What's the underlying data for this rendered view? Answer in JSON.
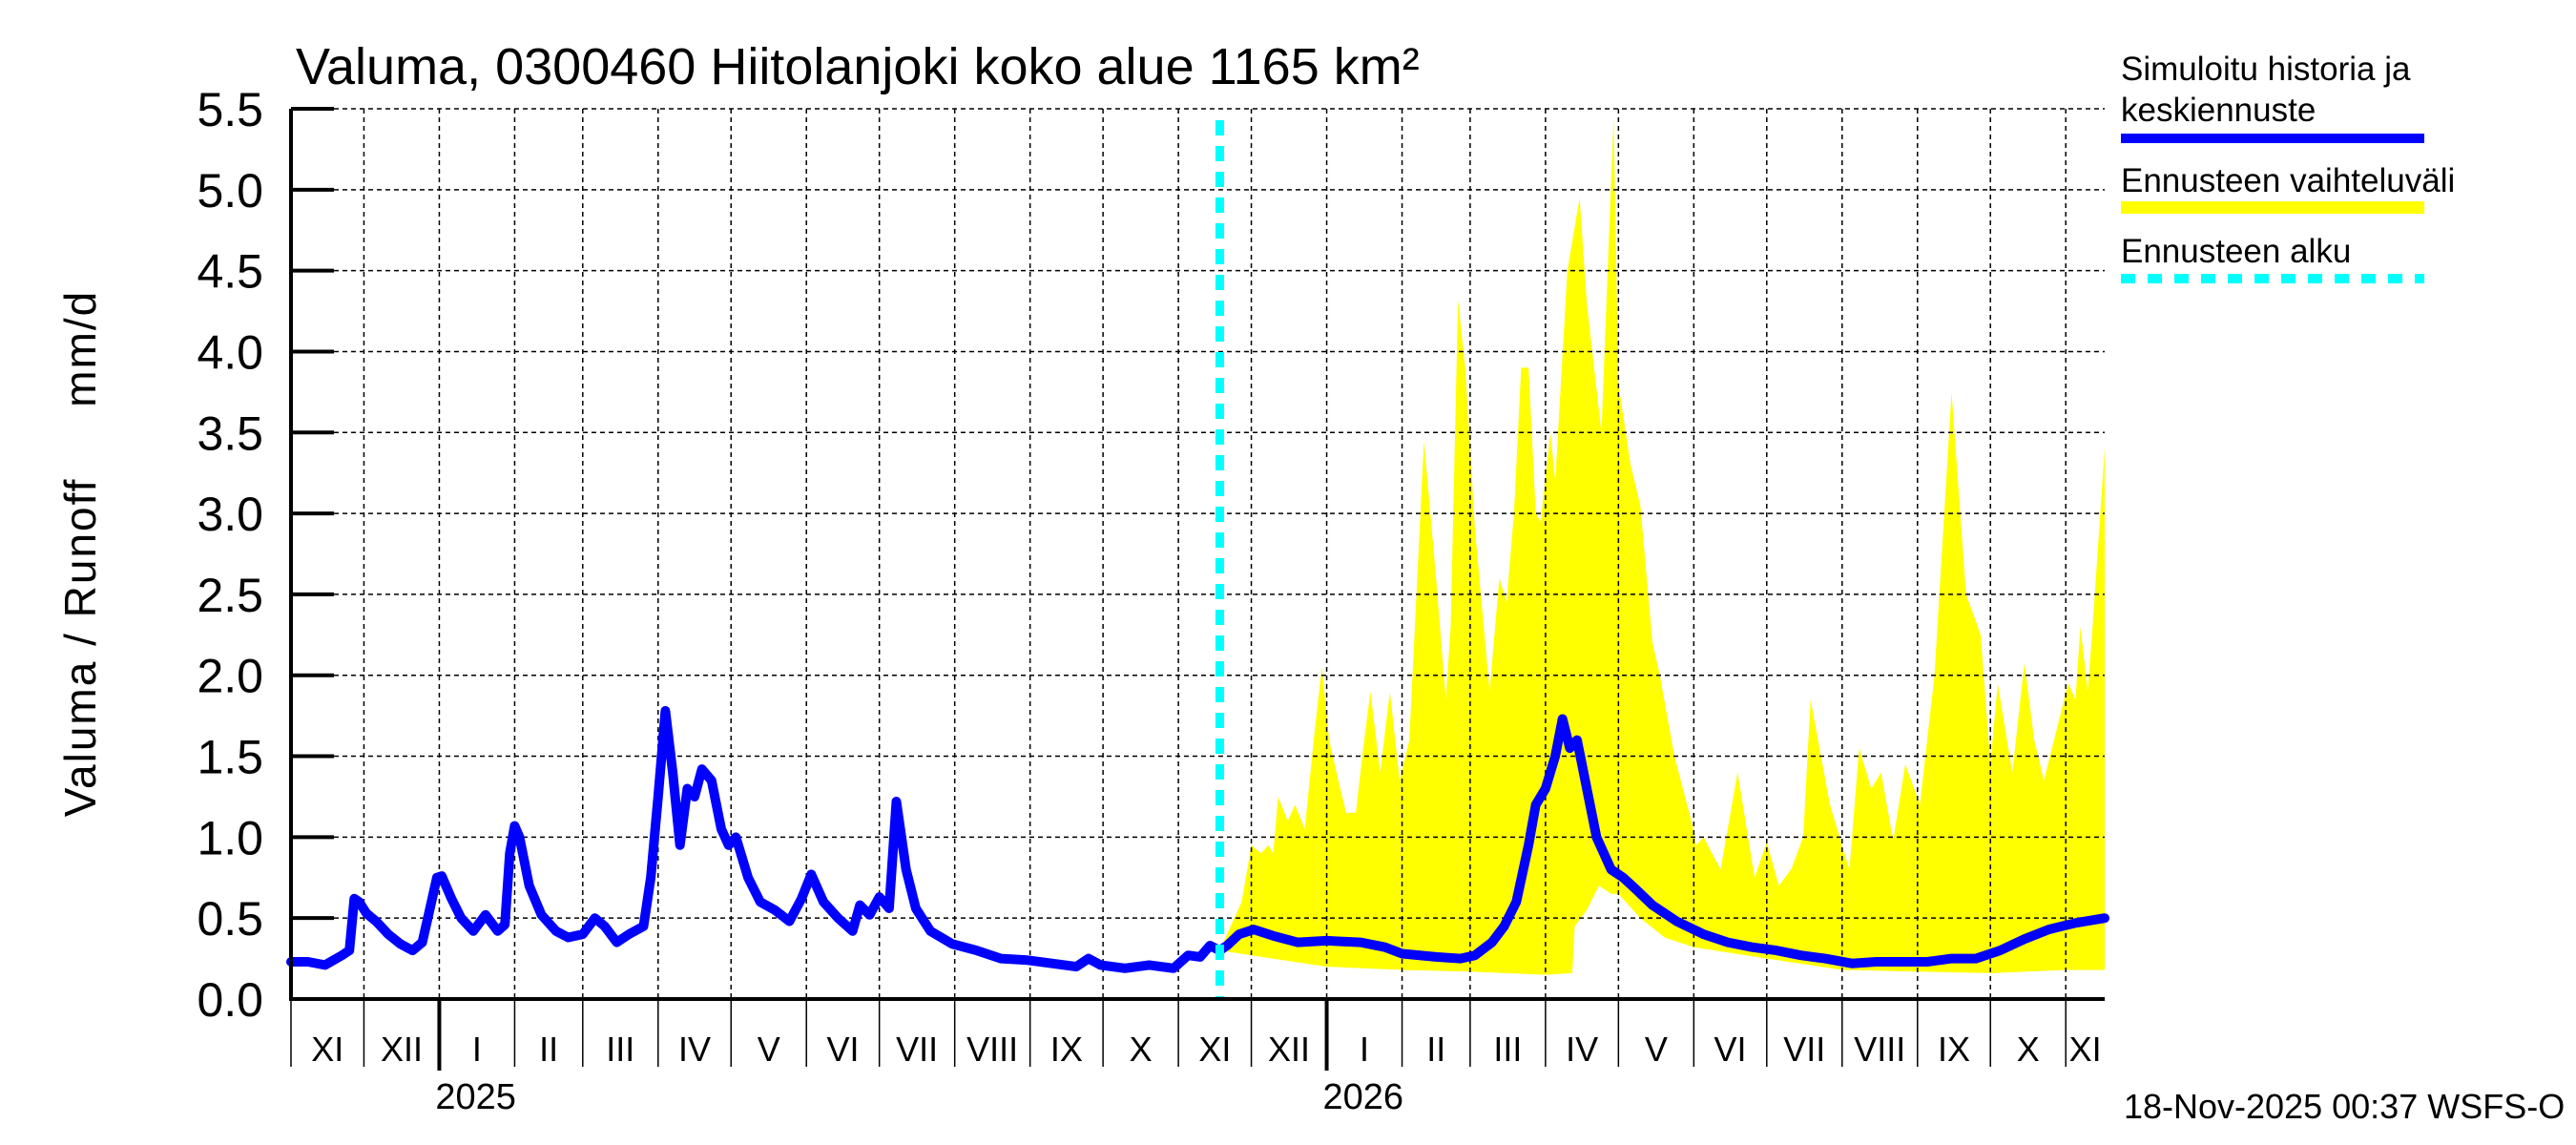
{
  "chart_data": {
    "type": "area",
    "title": "Valuma, 0300460 Hiitolanjoki koko alue 1165 km²",
    "ylabel": "Valuma / Runoff     mm/d",
    "ylim": [
      0,
      5.5
    ],
    "yticks": [
      "0.0",
      "0.5",
      "1.0",
      "1.5",
      "2.0",
      "2.5",
      "3.0",
      "3.5",
      "4.0",
      "4.5",
      "5.0",
      "5.5"
    ],
    "xlim": [
      "2024-11-01",
      "2026-11-17"
    ],
    "month_ticks": [
      {
        "date": "2024-11-01",
        "label": "XI"
      },
      {
        "date": "2024-12-01",
        "label": "XII"
      },
      {
        "date": "2025-01-01",
        "label": "I"
      },
      {
        "date": "2025-02-01",
        "label": "II"
      },
      {
        "date": "2025-03-01",
        "label": "III"
      },
      {
        "date": "2025-04-01",
        "label": "IV"
      },
      {
        "date": "2025-05-01",
        "label": "V"
      },
      {
        "date": "2025-06-01",
        "label": "VI"
      },
      {
        "date": "2025-07-01",
        "label": "VII"
      },
      {
        "date": "2025-08-01",
        "label": "VIII"
      },
      {
        "date": "2025-09-01",
        "label": "IX"
      },
      {
        "date": "2025-10-01",
        "label": "X"
      },
      {
        "date": "2025-11-01",
        "label": "XI"
      },
      {
        "date": "2025-12-01",
        "label": "XII"
      },
      {
        "date": "2026-01-01",
        "label": "I"
      },
      {
        "date": "2026-02-01",
        "label": "II"
      },
      {
        "date": "2026-03-01",
        "label": "III"
      },
      {
        "date": "2026-04-01",
        "label": "IV"
      },
      {
        "date": "2026-05-01",
        "label": "V"
      },
      {
        "date": "2026-06-01",
        "label": "VI"
      },
      {
        "date": "2026-07-01",
        "label": "VII"
      },
      {
        "date": "2026-08-01",
        "label": "VIII"
      },
      {
        "date": "2026-09-01",
        "label": "IX"
      },
      {
        "date": "2026-10-01",
        "label": "X"
      },
      {
        "date": "2026-11-01",
        "label": "XI"
      }
    ],
    "year_labels": [
      {
        "date": "2025-01-16",
        "label": "2025"
      },
      {
        "date": "2026-01-16",
        "label": "2026"
      }
    ],
    "grid": true,
    "legend_position": "right",
    "forecast_start": "2025-11-18",
    "series": [
      {
        "name": "Simuloitu historia ja keskiennuste",
        "color": "#0000ff",
        "points": [
          [
            "2024-11-01",
            0.23
          ],
          [
            "2024-11-08",
            0.23
          ],
          [
            "2024-11-15",
            0.21
          ],
          [
            "2024-11-22",
            0.27
          ],
          [
            "2024-11-25",
            0.3
          ],
          [
            "2024-11-27",
            0.62
          ],
          [
            "2024-11-29",
            0.6
          ],
          [
            "2024-12-02",
            0.53
          ],
          [
            "2024-12-06",
            0.48
          ],
          [
            "2024-12-11",
            0.4
          ],
          [
            "2024-12-16",
            0.34
          ],
          [
            "2024-12-21",
            0.3
          ],
          [
            "2024-12-25",
            0.35
          ],
          [
            "2024-12-28",
            0.55
          ],
          [
            "2024-12-31",
            0.75
          ],
          [
            "2025-01-02",
            0.76
          ],
          [
            "2025-01-06",
            0.62
          ],
          [
            "2025-01-10",
            0.5
          ],
          [
            "2025-01-15",
            0.42
          ],
          [
            "2025-01-20",
            0.52
          ],
          [
            "2025-01-25",
            0.42
          ],
          [
            "2025-01-28",
            0.46
          ],
          [
            "2025-01-30",
            0.9
          ],
          [
            "2025-02-01",
            1.07
          ],
          [
            "2025-02-03",
            1.0
          ],
          [
            "2025-02-07",
            0.7
          ],
          [
            "2025-02-12",
            0.52
          ],
          [
            "2025-02-18",
            0.42
          ],
          [
            "2025-02-23",
            0.38
          ],
          [
            "2025-03-01",
            0.4
          ],
          [
            "2025-03-06",
            0.5
          ],
          [
            "2025-03-10",
            0.45
          ],
          [
            "2025-03-15",
            0.35
          ],
          [
            "2025-03-20",
            0.4
          ],
          [
            "2025-03-26",
            0.45
          ],
          [
            "2025-03-29",
            0.75
          ],
          [
            "2025-04-01",
            1.25
          ],
          [
            "2025-04-04",
            1.78
          ],
          [
            "2025-04-07",
            1.4
          ],
          [
            "2025-04-10",
            0.95
          ],
          [
            "2025-04-13",
            1.3
          ],
          [
            "2025-04-16",
            1.25
          ],
          [
            "2025-04-19",
            1.42
          ],
          [
            "2025-04-23",
            1.35
          ],
          [
            "2025-04-27",
            1.05
          ],
          [
            "2025-04-30",
            0.95
          ],
          [
            "2025-05-03",
            1.0
          ],
          [
            "2025-05-08",
            0.75
          ],
          [
            "2025-05-13",
            0.6
          ],
          [
            "2025-05-19",
            0.55
          ],
          [
            "2025-05-25",
            0.48
          ],
          [
            "2025-05-30",
            0.62
          ],
          [
            "2025-06-03",
            0.77
          ],
          [
            "2025-06-08",
            0.6
          ],
          [
            "2025-06-14",
            0.5
          ],
          [
            "2025-06-20",
            0.42
          ],
          [
            "2025-06-23",
            0.58
          ],
          [
            "2025-06-27",
            0.52
          ],
          [
            "2025-07-01",
            0.63
          ],
          [
            "2025-07-05",
            0.56
          ],
          [
            "2025-07-08",
            1.22
          ],
          [
            "2025-07-12",
            0.8
          ],
          [
            "2025-07-16",
            0.56
          ],
          [
            "2025-07-22",
            0.42
          ],
          [
            "2025-07-31",
            0.34
          ],
          [
            "2025-08-10",
            0.3
          ],
          [
            "2025-08-20",
            0.25
          ],
          [
            "2025-08-31",
            0.24
          ],
          [
            "2025-09-10",
            0.22
          ],
          [
            "2025-09-20",
            0.2
          ],
          [
            "2025-09-25",
            0.25
          ],
          [
            "2025-09-30",
            0.21
          ],
          [
            "2025-10-10",
            0.19
          ],
          [
            "2025-10-20",
            0.21
          ],
          [
            "2025-10-30",
            0.19
          ],
          [
            "2025-11-05",
            0.27
          ],
          [
            "2025-11-10",
            0.26
          ],
          [
            "2025-11-14",
            0.33
          ],
          [
            "2025-11-18",
            0.3
          ],
          [
            "2025-11-21",
            0.33
          ],
          [
            "2025-11-26",
            0.4
          ],
          [
            "2025-12-02",
            0.43
          ],
          [
            "2025-12-10",
            0.39
          ],
          [
            "2025-12-20",
            0.35
          ],
          [
            "2026-01-01",
            0.36
          ],
          [
            "2026-01-15",
            0.35
          ],
          [
            "2026-01-25",
            0.32
          ],
          [
            "2026-02-01",
            0.28
          ],
          [
            "2026-02-15",
            0.26
          ],
          [
            "2026-02-25",
            0.25
          ],
          [
            "2026-03-03",
            0.27
          ],
          [
            "2026-03-10",
            0.35
          ],
          [
            "2026-03-15",
            0.45
          ],
          [
            "2026-03-20",
            0.6
          ],
          [
            "2026-03-25",
            0.95
          ],
          [
            "2026-03-28",
            1.2
          ],
          [
            "2026-04-01",
            1.3
          ],
          [
            "2026-04-05",
            1.5
          ],
          [
            "2026-04-08",
            1.73
          ],
          [
            "2026-04-11",
            1.55
          ],
          [
            "2026-04-14",
            1.6
          ],
          [
            "2026-04-18",
            1.3
          ],
          [
            "2026-04-22",
            1.0
          ],
          [
            "2026-04-28",
            0.8
          ],
          [
            "2026-05-03",
            0.75
          ],
          [
            "2026-05-08",
            0.68
          ],
          [
            "2026-05-15",
            0.58
          ],
          [
            "2026-05-25",
            0.48
          ],
          [
            "2026-06-05",
            0.4
          ],
          [
            "2026-06-15",
            0.35
          ],
          [
            "2026-06-25",
            0.32
          ],
          [
            "2026-07-05",
            0.3
          ],
          [
            "2026-07-15",
            0.27
          ],
          [
            "2026-07-25",
            0.25
          ],
          [
            "2026-08-05",
            0.22
          ],
          [
            "2026-08-15",
            0.23
          ],
          [
            "2026-08-25",
            0.23
          ],
          [
            "2026-09-05",
            0.23
          ],
          [
            "2026-09-15",
            0.25
          ],
          [
            "2026-09-25",
            0.25
          ],
          [
            "2026-10-05",
            0.3
          ],
          [
            "2026-10-15",
            0.37
          ],
          [
            "2026-10-25",
            0.43
          ],
          [
            "2026-11-05",
            0.47
          ],
          [
            "2026-11-17",
            0.5
          ]
        ]
      },
      {
        "name": "Ennusteen vaihteluväli",
        "color": "#ffff00",
        "upper": [
          [
            "2025-11-18",
            0.3
          ],
          [
            "2025-11-27",
            0.6
          ],
          [
            "2025-12-01",
            0.95
          ],
          [
            "2025-12-05",
            0.9
          ],
          [
            "2025-12-08",
            0.95
          ],
          [
            "2025-12-10",
            0.9
          ],
          [
            "2025-12-12",
            1.25
          ],
          [
            "2025-12-16",
            1.1
          ],
          [
            "2025-12-19",
            1.2
          ],
          [
            "2025-12-23",
            1.05
          ],
          [
            "2025-12-27",
            1.65
          ],
          [
            "2025-12-30",
            2.05
          ],
          [
            "2026-01-02",
            1.6
          ],
          [
            "2026-01-05",
            1.4
          ],
          [
            "2026-01-09",
            1.15
          ],
          [
            "2026-01-13",
            1.15
          ],
          [
            "2026-01-16",
            1.55
          ],
          [
            "2026-01-19",
            1.9
          ],
          [
            "2026-01-23",
            1.4
          ],
          [
            "2026-01-27",
            1.9
          ],
          [
            "2026-01-31",
            1.35
          ],
          [
            "2026-02-04",
            1.6
          ],
          [
            "2026-02-10",
            3.45
          ],
          [
            "2026-02-15",
            2.6
          ],
          [
            "2026-02-19",
            1.85
          ],
          [
            "2026-02-21",
            2.3
          ],
          [
            "2026-02-24",
            4.32
          ],
          [
            "2026-02-27",
            3.9
          ],
          [
            "2026-03-03",
            2.9
          ],
          [
            "2026-03-09",
            1.9
          ],
          [
            "2026-03-13",
            2.6
          ],
          [
            "2026-03-16",
            2.45
          ],
          [
            "2026-03-19",
            3.0
          ],
          [
            "2026-03-22",
            3.9
          ],
          [
            "2026-03-25",
            3.9
          ],
          [
            "2026-03-28",
            3.0
          ],
          [
            "2026-03-30",
            2.95
          ],
          [
            "2026-04-03",
            3.5
          ],
          [
            "2026-04-05",
            3.2
          ],
          [
            "2026-04-10",
            4.5
          ],
          [
            "2026-04-15",
            4.95
          ],
          [
            "2026-04-18",
            4.3
          ],
          [
            "2026-04-24",
            3.5
          ],
          [
            "2026-04-29",
            5.45
          ],
          [
            "2026-05-01",
            3.8
          ],
          [
            "2026-05-06",
            3.3
          ],
          [
            "2026-05-10",
            3.05
          ],
          [
            "2026-05-15",
            2.2
          ],
          [
            "2026-05-18",
            2.0
          ],
          [
            "2026-05-24",
            1.5
          ],
          [
            "2026-05-31",
            1.1
          ],
          [
            "2026-06-02",
            0.95
          ],
          [
            "2026-06-05",
            1.0
          ],
          [
            "2026-06-12",
            0.8
          ],
          [
            "2026-06-19",
            1.4
          ],
          [
            "2026-06-26",
            0.75
          ],
          [
            "2026-07-01",
            0.97
          ],
          [
            "2026-07-06",
            0.7
          ],
          [
            "2026-07-11",
            0.8
          ],
          [
            "2026-07-16",
            1.0
          ],
          [
            "2026-07-19",
            1.85
          ],
          [
            "2026-07-27",
            1.2
          ],
          [
            "2026-08-04",
            0.8
          ],
          [
            "2026-08-08",
            1.55
          ],
          [
            "2026-08-13",
            1.3
          ],
          [
            "2026-08-17",
            1.4
          ],
          [
            "2026-08-22",
            0.98
          ],
          [
            "2026-08-27",
            1.45
          ],
          [
            "2026-09-02",
            1.2
          ],
          [
            "2026-09-08",
            2.0
          ],
          [
            "2026-09-15",
            3.75
          ],
          [
            "2026-09-21",
            2.5
          ],
          [
            "2026-09-27",
            2.25
          ],
          [
            "2026-10-01",
            1.45
          ],
          [
            "2026-10-04",
            1.95
          ],
          [
            "2026-10-10",
            1.4
          ],
          [
            "2026-10-15",
            2.08
          ],
          [
            "2026-10-19",
            1.6
          ],
          [
            "2026-10-23",
            1.35
          ],
          [
            "2026-10-28",
            1.65
          ],
          [
            "2026-11-02",
            1.95
          ],
          [
            "2026-11-05",
            1.85
          ],
          [
            "2026-11-07",
            2.3
          ],
          [
            "2026-11-10",
            1.9
          ],
          [
            "2026-11-12",
            2.3
          ],
          [
            "2026-11-17",
            3.4
          ]
        ],
        "lower": [
          [
            "2025-11-18",
            0.3
          ],
          [
            "2025-12-01",
            0.27
          ],
          [
            "2026-01-01",
            0.2
          ],
          [
            "2026-02-01",
            0.18
          ],
          [
            "2026-03-01",
            0.17
          ],
          [
            "2026-04-01",
            0.15
          ],
          [
            "2026-04-12",
            0.16
          ],
          [
            "2026-04-13",
            0.45
          ],
          [
            "2026-04-18",
            0.55
          ],
          [
            "2026-04-23",
            0.7
          ],
          [
            "2026-04-28",
            0.65
          ],
          [
            "2026-05-01",
            0.65
          ],
          [
            "2026-05-10",
            0.5
          ],
          [
            "2026-05-20",
            0.38
          ],
          [
            "2026-06-01",
            0.32
          ],
          [
            "2026-07-01",
            0.25
          ],
          [
            "2026-08-01",
            0.18
          ],
          [
            "2026-09-01",
            0.17
          ],
          [
            "2026-10-01",
            0.16
          ],
          [
            "2026-11-01",
            0.18
          ],
          [
            "2026-11-17",
            0.18
          ]
        ]
      }
    ]
  },
  "legend": {
    "items": [
      {
        "label_line1": "Simuloitu historia ja",
        "label_line2": "keskiennuste",
        "color": "#0000ff",
        "style": "solid"
      },
      {
        "label_line1": "Ennusteen vaihteluväli",
        "color": "#ffff00",
        "style": "band"
      },
      {
        "label_line1": "Ennusteen alku",
        "color": "#00ffff",
        "style": "dashed"
      }
    ]
  },
  "footer": "18-Nov-2025 00:37 WSFS-O"
}
